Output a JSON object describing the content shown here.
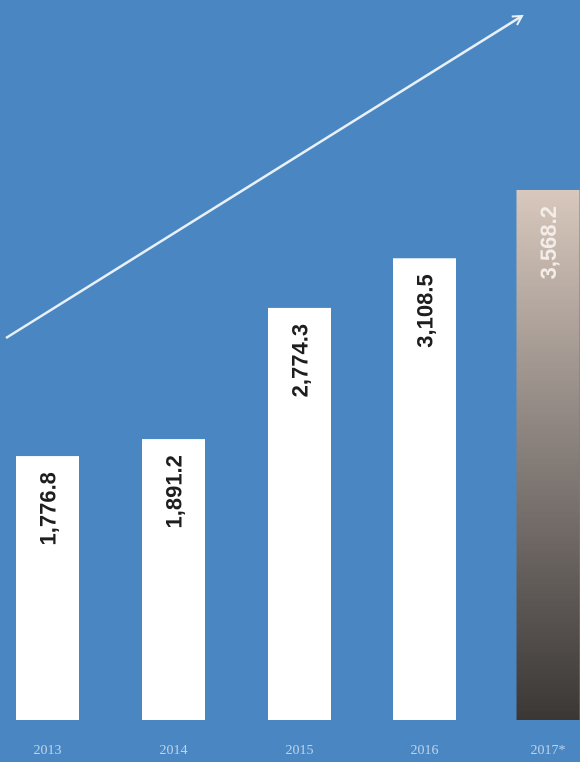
{
  "chart_data": {
    "type": "bar",
    "categories": [
      "2013",
      "2014",
      "2015",
      "2016",
      "2017*"
    ],
    "values": [
      1776.8,
      1891.2,
      2774.3,
      3108.5,
      3568.2
    ],
    "value_labels": [
      "1,776.8",
      "1,891.2",
      "2,774.3",
      "3,108.5",
      "3,568.2"
    ],
    "title": "",
    "xlabel": "",
    "ylabel": "",
    "ylim": [
      0,
      3568.2
    ],
    "grid": false,
    "legend": "none",
    "trend_arrow": "upward",
    "colors": {
      "background": "#4a87c2",
      "bar": "#ffffff",
      "bar_label": "#1e1e1e",
      "forecast_bar_top": "#d8c8bd",
      "forecast_bar_bottom": "#3a3735",
      "forecast_label": "#f3ece7",
      "tick_label": "#bcd3ea",
      "arrow": "#e9f0f7"
    }
  }
}
